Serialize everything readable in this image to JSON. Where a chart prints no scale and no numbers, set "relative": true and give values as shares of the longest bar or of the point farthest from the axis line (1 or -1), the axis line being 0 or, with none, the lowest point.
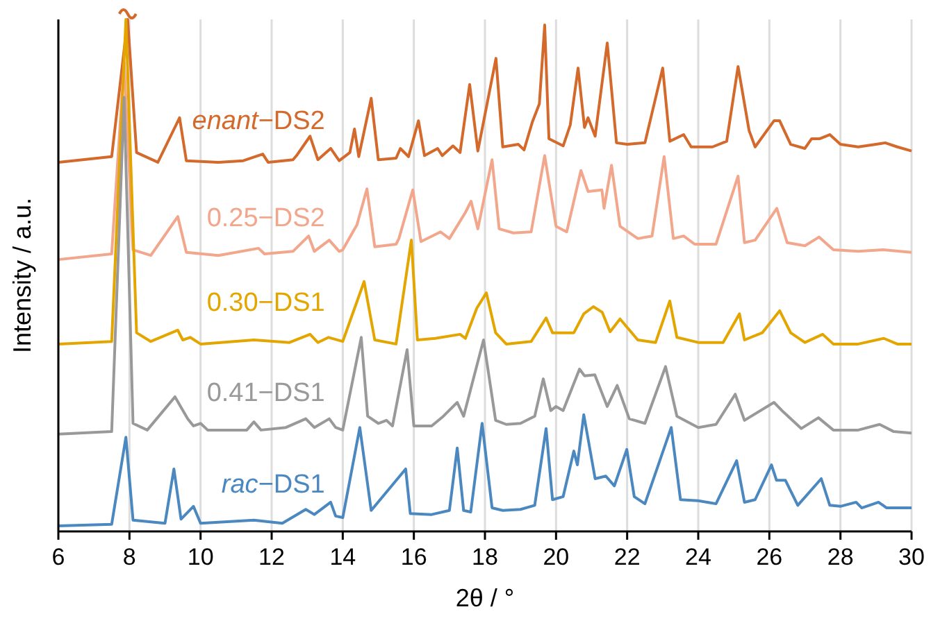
{
  "chart_data": {
    "type": "line",
    "relative": true,
    "xlabel": "2θ / °",
    "ylabel": "Intensity / a.u.",
    "xlim": [
      6,
      30
    ],
    "xticks": [
      6,
      8,
      10,
      12,
      14,
      16,
      18,
      20,
      22,
      24,
      26,
      28,
      30
    ],
    "grid": "x",
    "line_style": "solid",
    "series": [
      {
        "name": "enant−DS2",
        "color": "#d4692c",
        "x": [
          6,
          7.5,
          7.95,
          8.2,
          8.8,
          9.41,
          9.6,
          10.5,
          11.2,
          11.75,
          11.9,
          12.6,
          12.7,
          13.08,
          13.3,
          13.66,
          13.9,
          14.2,
          14.33,
          14.45,
          14.8,
          15,
          15.5,
          15.62,
          15.85,
          16.13,
          16.3,
          16.67,
          16.8,
          17.1,
          17.3,
          17.57,
          17.8,
          18.31,
          18.5,
          18.94,
          19.1,
          19.33,
          19.53,
          19.68,
          19.8,
          20.2,
          20.4,
          20.62,
          20.8,
          20.9,
          21.1,
          21.44,
          21.7,
          22,
          22.5,
          23,
          23.2,
          23.59,
          23.8,
          24.4,
          24.8,
          25.12,
          25.43,
          25.6,
          26.13,
          26.29,
          26.6,
          27,
          27.19,
          27.42,
          27.7,
          28,
          28.5,
          29,
          29.26,
          29.6,
          30
        ],
        "values": [
          0.721,
          0.732,
          1,
          0.74,
          0.721,
          0.808,
          0.724,
          0.721,
          0.724,
          0.737,
          0.721,
          0.726,
          0.734,
          0.772,
          0.726,
          0.748,
          0.724,
          0.74,
          0.786,
          0.732,
          0.846,
          0.726,
          0.729,
          0.748,
          0.732,
          0.802,
          0.734,
          0.748,
          0.734,
          0.753,
          0.74,
          0.873,
          0.743,
          0.924,
          0.751,
          0.756,
          0.745,
          0.799,
          0.835,
          0.989,
          0.767,
          0.753,
          0.794,
          0.905,
          0.789,
          0.808,
          0.772,
          0.954,
          0.759,
          0.756,
          0.759,
          0.905,
          0.762,
          0.775,
          0.751,
          0.751,
          0.762,
          0.908,
          0.783,
          0.751,
          0.802,
          0.802,
          0.756,
          0.748,
          0.767,
          0.767,
          0.775,
          0.756,
          0.751,
          0.756,
          0.759,
          0.751,
          0.743
        ]
      },
      {
        "name": "0.25−DS2",
        "color": "#f2a68c",
        "x": [
          6,
          7.5,
          7.85,
          8.1,
          8.6,
          9.36,
          9.6,
          10.5,
          11.63,
          11.8,
          12.6,
          13.04,
          13.2,
          13.62,
          13.9,
          14,
          14.4,
          14.68,
          14.9,
          15.5,
          15.58,
          15.97,
          16.2,
          16.75,
          17,
          17.45,
          17.61,
          17.8,
          18.2,
          18.4,
          18.8,
          19.3,
          19.68,
          20,
          20.3,
          20.7,
          20.9,
          21.29,
          21.35,
          21.56,
          21.8,
          22.3,
          22.7,
          23.04,
          23.3,
          23.59,
          23.9,
          24.5,
          25.12,
          25.3,
          25.6,
          26.21,
          26.5,
          27,
          27.4,
          27.8,
          28.5,
          29.2,
          30
        ],
        "values": [
          0.531,
          0.542,
          0.916,
          0.55,
          0.539,
          0.615,
          0.545,
          0.539,
          0.553,
          0.542,
          0.547,
          0.577,
          0.547,
          0.569,
          0.547,
          0.55,
          0.599,
          0.669,
          0.556,
          0.561,
          0.572,
          0.667,
          0.566,
          0.585,
          0.572,
          0.623,
          0.645,
          0.591,
          0.726,
          0.591,
          0.583,
          0.585,
          0.734,
          0.596,
          0.585,
          0.705,
          0.664,
          0.667,
          0.631,
          0.715,
          0.596,
          0.572,
          0.577,
          0.732,
          0.572,
          0.577,
          0.561,
          0.561,
          0.694,
          0.564,
          0.569,
          0.631,
          0.564,
          0.558,
          0.575,
          0.55,
          0.547,
          0.55,
          0.545
        ]
      },
      {
        "name": "0.30−DS1",
        "color": "#e3a600",
        "x": [
          6,
          7.5,
          7.9,
          8.2,
          8.6,
          9.36,
          9.5,
          9.71,
          10,
          11.5,
          12.5,
          13.08,
          13.3,
          13.6,
          14,
          14.6,
          14.9,
          15.5,
          15.93,
          16.1,
          16.6,
          17.3,
          17.45,
          17.77,
          18.04,
          18.3,
          18.6,
          19.3,
          19.72,
          19.9,
          20.2,
          20.5,
          20.78,
          21.05,
          21.3,
          21.52,
          21.8,
          22.3,
          22.8,
          23.2,
          23.4,
          24,
          24.7,
          25.16,
          25.3,
          25.8,
          26.29,
          26.6,
          27,
          27.5,
          27.8,
          28.5,
          29.22,
          29.6,
          30
        ],
        "values": [
          0.366,
          0.371,
          1,
          0.388,
          0.371,
          0.393,
          0.374,
          0.379,
          0.366,
          0.374,
          0.369,
          0.385,
          0.369,
          0.379,
          0.371,
          0.488,
          0.374,
          0.366,
          0.569,
          0.374,
          0.377,
          0.385,
          0.377,
          0.436,
          0.466,
          0.388,
          0.366,
          0.371,
          0.417,
          0.388,
          0.388,
          0.388,
          0.425,
          0.439,
          0.428,
          0.39,
          0.415,
          0.374,
          0.369,
          0.45,
          0.379,
          0.369,
          0.369,
          0.425,
          0.374,
          0.388,
          0.431,
          0.388,
          0.369,
          0.385,
          0.366,
          0.366,
          0.377,
          0.366,
          0.366
        ]
      },
      {
        "name": "0.41−DS1",
        "color": "#999999",
        "x": [
          6,
          7.5,
          7.85,
          8.1,
          8.5,
          9.28,
          9.64,
          9.8,
          10,
          10.2,
          11.3,
          11.5,
          11.7,
          12.4,
          12.96,
          13.2,
          13.62,
          13.8,
          14,
          14.52,
          14.7,
          15,
          15.23,
          15.4,
          15.81,
          16,
          16.5,
          16.83,
          17.22,
          17.4,
          17.96,
          18.3,
          18.6,
          19,
          19.4,
          19.64,
          19.85,
          20,
          20.2,
          20.66,
          20.8,
          21.09,
          21.44,
          21.72,
          22.06,
          22.5,
          23.08,
          23.4,
          24,
          24.5,
          25.04,
          25.3,
          26.13,
          26.4,
          26.9,
          27.38,
          27.8,
          28.5,
          29.1,
          29.5,
          30
        ],
        "values": [
          0.19,
          0.195,
          0.848,
          0.211,
          0.198,
          0.263,
          0.22,
          0.206,
          0.211,
          0.198,
          0.198,
          0.214,
          0.198,
          0.203,
          0.22,
          0.203,
          0.22,
          0.203,
          0.198,
          0.379,
          0.225,
          0.211,
          0.217,
          0.206,
          0.355,
          0.206,
          0.206,
          0.225,
          0.252,
          0.225,
          0.374,
          0.217,
          0.209,
          0.211,
          0.225,
          0.298,
          0.236,
          0.244,
          0.236,
          0.317,
          0.304,
          0.306,
          0.244,
          0.285,
          0.22,
          0.211,
          0.322,
          0.225,
          0.203,
          0.209,
          0.268,
          0.217,
          0.252,
          0.233,
          0.201,
          0.222,
          0.198,
          0.198,
          0.209,
          0.195,
          0.192
        ]
      },
      {
        "name": "rac−DS1",
        "color": "#4b88c0",
        "x": [
          6,
          7.5,
          7.9,
          8.1,
          9,
          9.25,
          9.45,
          9.8,
          10,
          11.5,
          12.3,
          12.96,
          13.2,
          13.66,
          13.8,
          14,
          14.48,
          14.8,
          15.77,
          15.9,
          16.5,
          17,
          17.22,
          17.4,
          17.6,
          17.92,
          18.2,
          18.5,
          19,
          19.4,
          19.72,
          19.9,
          20.2,
          20.5,
          20.6,
          20.78,
          21.1,
          21.4,
          21.64,
          21.99,
          22.2,
          22.5,
          23.24,
          23.5,
          24,
          24.5,
          25.08,
          25.3,
          25.6,
          26.06,
          26.2,
          26.45,
          26.8,
          27.46,
          27.7,
          28,
          28.44,
          28.6,
          29.07,
          29.3,
          30
        ],
        "values": [
          0.011,
          0.014,
          0.184,
          0.022,
          0.016,
          0.122,
          0.024,
          0.049,
          0.016,
          0.022,
          0.016,
          0.043,
          0.033,
          0.057,
          0.03,
          0.027,
          0.203,
          0.041,
          0.122,
          0.035,
          0.033,
          0.041,
          0.163,
          0.041,
          0.038,
          0.211,
          0.046,
          0.041,
          0.043,
          0.051,
          0.201,
          0.062,
          0.068,
          0.157,
          0.13,
          0.228,
          0.103,
          0.108,
          0.089,
          0.16,
          0.068,
          0.054,
          0.203,
          0.062,
          0.06,
          0.054,
          0.138,
          0.057,
          0.062,
          0.13,
          0.1,
          0.1,
          0.051,
          0.103,
          0.051,
          0.049,
          0.057,
          0.046,
          0.057,
          0.046,
          0.046
        ]
      }
    ]
  }
}
